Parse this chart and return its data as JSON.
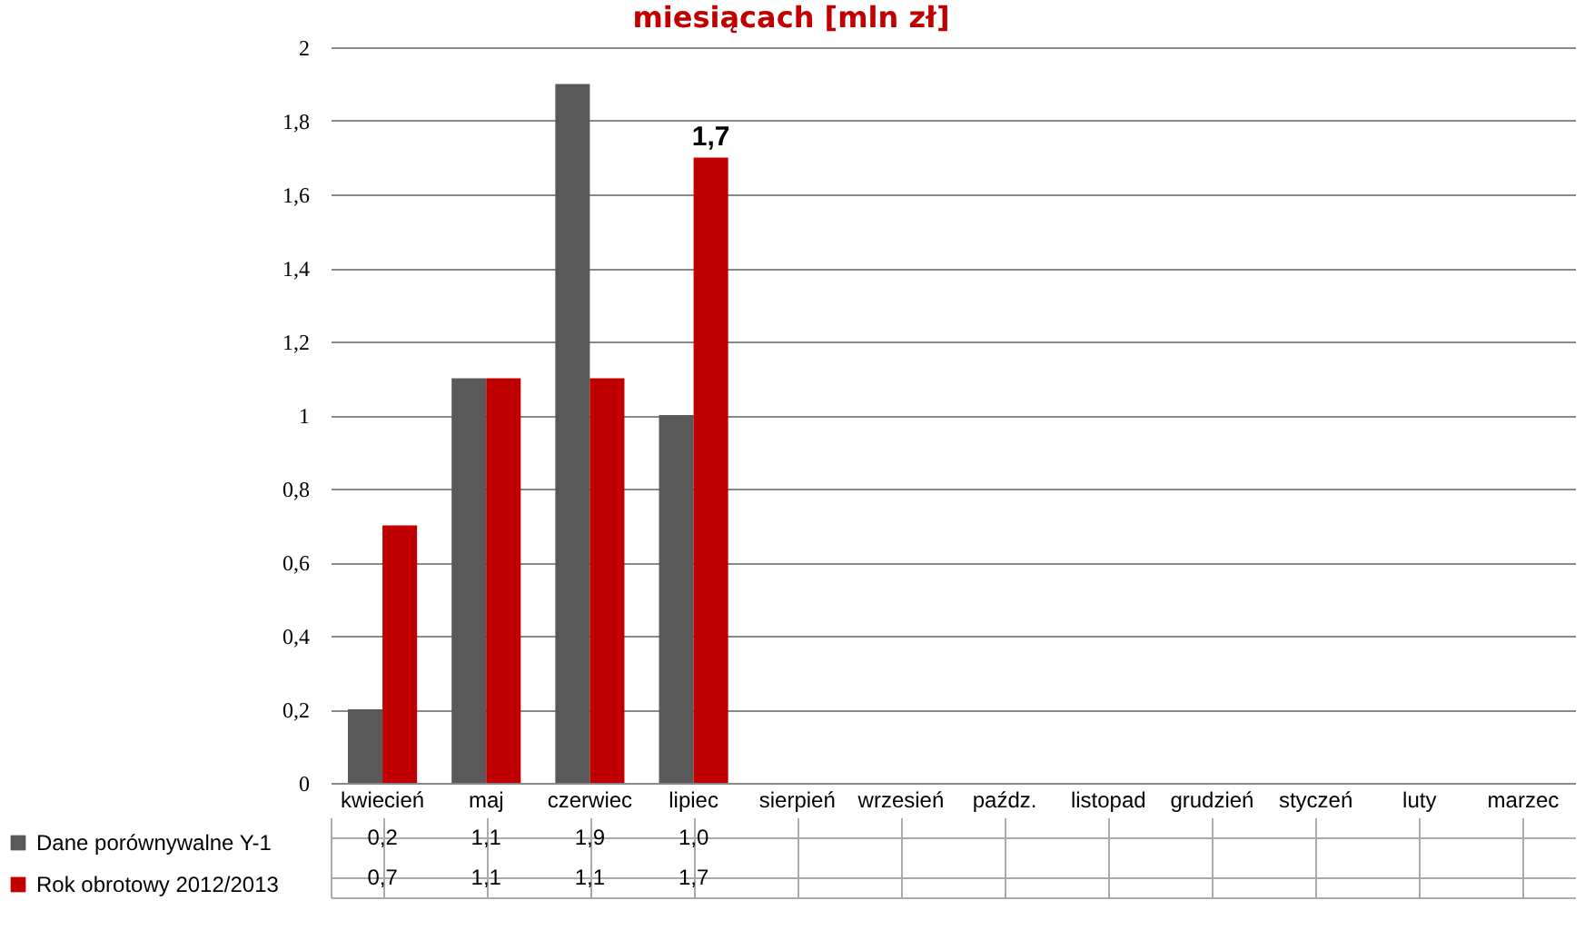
{
  "chart_data": {
    "type": "bar",
    "title": "miesiącach [mln zł]",
    "categories": [
      "kwiecień",
      "maj",
      "czerwiec",
      "lipiec",
      "sierpień",
      "wrzesień",
      "paźdz.",
      "listopad",
      "grudzień",
      "styczeń",
      "luty",
      "marzec"
    ],
    "series": [
      {
        "name": "Dane porównywalne Y-1",
        "color": "#595959",
        "values": [
          0.2,
          1.1,
          1.9,
          1.0,
          null,
          null,
          null,
          null,
          null,
          null,
          null,
          null
        ],
        "value_labels": [
          "0,2",
          "1,1",
          "1,9",
          "1,0",
          null,
          null,
          null,
          null,
          null,
          null,
          null,
          null
        ]
      },
      {
        "name": "Rok obrotowy 2012/2013",
        "color": "#c00000",
        "values": [
          0.7,
          1.1,
          1.1,
          1.7,
          null,
          null,
          null,
          null,
          null,
          null,
          null,
          null
        ],
        "value_labels": [
          "0,7",
          "1,1",
          "1,1",
          "1,7",
          null,
          null,
          null,
          null,
          null,
          null,
          null,
          null
        ]
      }
    ],
    "ylim": [
      0,
      2
    ],
    "yticks": [
      0,
      {
        "value": 0.2,
        "label": "0,2"
      },
      {
        "value": 0.4,
        "label": "0,4"
      },
      {
        "value": 0.6,
        "label": "0,6"
      },
      {
        "value": 0.8,
        "label": "0,8"
      },
      1,
      {
        "value": 1.2,
        "label": "1,2"
      },
      {
        "value": 1.4,
        "label": "1,4"
      },
      {
        "value": 1.6,
        "label": "1,6"
      },
      {
        "value": 1.8,
        "label": "1,8"
      },
      2
    ],
    "annotations": [
      {
        "text": "1,7",
        "x": "lipiec",
        "y": 1.7
      }
    ],
    "grid": "y",
    "legend": "bottom"
  }
}
